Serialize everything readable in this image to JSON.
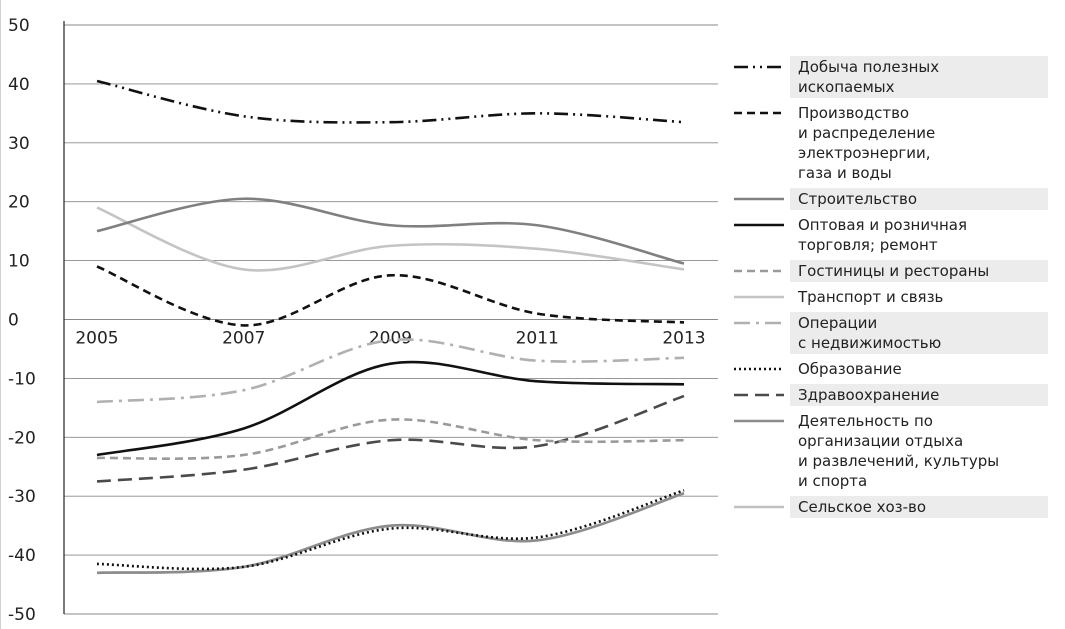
{
  "chart_data": {
    "type": "line",
    "x": [
      2005,
      2007,
      2009,
      2011,
      2013
    ],
    "xticks": [
      "2005",
      "2007",
      "2009",
      "2011",
      "2013"
    ],
    "ylim": [
      -50,
      50
    ],
    "yticks": [
      "50",
      "40",
      "30",
      "20",
      "10",
      "0",
      "-10",
      "-20",
      "-30",
      "-40",
      "-50"
    ],
    "ytick_values": [
      50,
      40,
      30,
      20,
      10,
      0,
      -10,
      -20,
      -30,
      -40,
      -50
    ],
    "grid": true,
    "legend": "right",
    "series": [
      {
        "name": "Добыча полезных\nископаемых",
        "values": [
          40.5,
          34.5,
          33.5,
          35,
          33.5
        ],
        "color": "#111111",
        "dash": "dashdotdot",
        "shaded": true
      },
      {
        "name": "Производство\nи распределение\nэлектроэнергии,\nгаза и воды",
        "values": [
          9,
          -1,
          7.5,
          1,
          -0.5
        ],
        "color": "#111111",
        "dash": "dashed",
        "shaded": false
      },
      {
        "name": "Строительство",
        "values": [
          15,
          20.5,
          16,
          16,
          9.5
        ],
        "color": "#808080",
        "dash": "solid",
        "shaded": true
      },
      {
        "name": "Оптовая и розничная\nторговля; ремонт",
        "values": [
          -23,
          -18.5,
          -7.5,
          -10.5,
          -11
        ],
        "color": "#111111",
        "dash": "solid",
        "shaded": false
      },
      {
        "name": "Гостиницы и рестораны",
        "values": [
          -23.5,
          -23,
          -17,
          -20.5,
          -20.5
        ],
        "color": "#9a9a9a",
        "dash": "dashed",
        "shaded": true
      },
      {
        "name": "Транспорт и связь",
        "values": [
          19,
          8.5,
          12.5,
          12,
          8.5
        ],
        "color": "#c4c4c4",
        "dash": "solid",
        "shaded": false
      },
      {
        "name": "Операции\nс недвижимостью",
        "values": [
          -14,
          -12,
          -3.5,
          -7,
          -6.5
        ],
        "color": "#b0b0b0",
        "dash": "dashdot",
        "shaded": true
      },
      {
        "name": "Образование",
        "values": [
          -41.5,
          -42,
          -35.5,
          -37,
          -29
        ],
        "color": "#111111",
        "dash": "dotted",
        "shaded": false
      },
      {
        "name": "Здравоохранение",
        "values": [
          -27.5,
          -25.5,
          -20.5,
          -21.5,
          -13
        ],
        "color": "#4a4a4a",
        "dash": "longdash",
        "shaded": true
      },
      {
        "name": "Деятельность по\nорганизации отдыха\nи развлечений, культуры\nи спорта",
        "values": [
          -43,
          -42,
          -35,
          -37.5,
          -29.5
        ],
        "color": "#8c8c8c",
        "dash": "solid",
        "shaded": false
      },
      {
        "name": "Сельское хоз-во",
        "values": [
          -43,
          -42,
          -35,
          -37.5,
          -29.5
        ],
        "color": "#c0c0c0",
        "dash": "solid",
        "shaded": true
      }
    ]
  }
}
